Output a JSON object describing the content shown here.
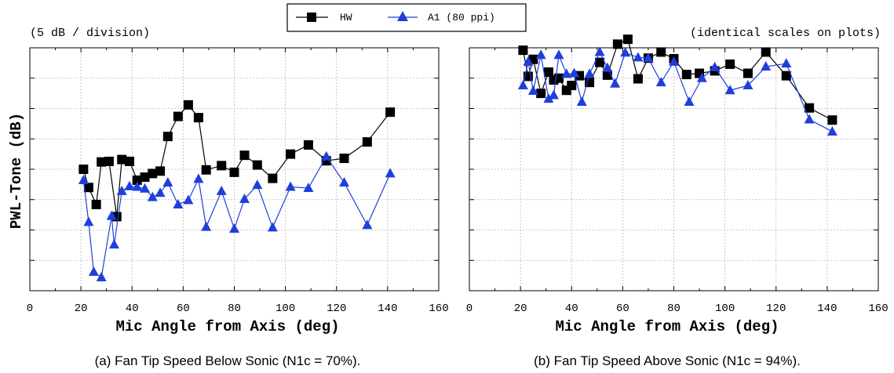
{
  "header": {
    "scale_note": "(5 dB / division)",
    "scale_note_right": "(identical scales on plots)"
  },
  "legend": {
    "position": "top-center",
    "entries": [
      {
        "label": "HW",
        "color": "#000000",
        "marker": "square"
      },
      {
        "label": "A1 (80 ppi)",
        "color": "#1f3fdc",
        "marker": "triangle"
      }
    ]
  },
  "chart_data": [
    {
      "type": "line",
      "title": "",
      "caption": "(a) Fan Tip Speed Below Sonic (N1c = 70%).",
      "xlabel": "Mic Angle from Axis (deg)",
      "ylabel": "PWL-Tone (dB)",
      "xlim": [
        0,
        160
      ],
      "xticks": [
        0,
        20,
        40,
        60,
        80,
        100,
        120,
        140,
        160
      ],
      "ylim": [
        0,
        40
      ],
      "y_tick_labels_shown": false,
      "grid": true,
      "series": [
        {
          "name": "HW",
          "color": "#000000",
          "marker": "square",
          "points": [
            [
              21,
              20
            ],
            [
              23,
              17
            ],
            [
              26,
              14.2
            ],
            [
              28,
              21.2
            ],
            [
              31,
              21.3
            ],
            [
              34,
              12.2
            ],
            [
              36,
              21.6
            ],
            [
              39,
              21.3
            ],
            [
              42,
              18.2
            ],
            [
              45,
              18.7
            ],
            [
              48,
              19.3
            ],
            [
              51,
              19.7
            ],
            [
              54,
              25.4
            ],
            [
              58,
              28.7
            ],
            [
              62,
              30.6
            ],
            [
              66,
              28.5
            ],
            [
              69,
              19.9
            ],
            [
              75,
              20.6
            ],
            [
              80,
              19.5
            ],
            [
              84,
              22.3
            ],
            [
              89,
              20.7
            ],
            [
              95,
              18.5
            ],
            [
              102,
              22.5
            ],
            [
              109,
              24
            ],
            [
              116,
              21.4
            ],
            [
              123,
              21.8
            ],
            [
              132,
              24.5
            ],
            [
              141,
              29.4
            ]
          ]
        },
        {
          "name": "A1 (80 ppi)",
          "color": "#1f3fdc",
          "marker": "triangle",
          "points": [
            [
              21,
              18.2
            ],
            [
              23,
              11.3
            ],
            [
              25,
              3.1
            ],
            [
              28,
              2.2
            ],
            [
              32,
              12.3
            ],
            [
              33,
              7.6
            ],
            [
              36,
              16.4
            ],
            [
              39,
              17.2
            ],
            [
              42,
              17.1
            ],
            [
              45,
              16.8
            ],
            [
              48,
              15.4
            ],
            [
              51,
              16.1
            ],
            [
              54,
              17.8
            ],
            [
              58,
              14.2
            ],
            [
              62,
              14.9
            ],
            [
              66,
              18.4
            ],
            [
              69,
              10.5
            ],
            [
              75,
              16.4
            ],
            [
              80,
              10.2
            ],
            [
              84,
              15.1
            ],
            [
              89,
              17.4
            ],
            [
              95,
              10.4
            ],
            [
              102,
              17.1
            ],
            [
              109,
              16.9
            ],
            [
              116,
              22.1
            ],
            [
              123,
              17.8
            ],
            [
              132,
              10.8
            ],
            [
              141,
              19.3
            ]
          ]
        }
      ]
    },
    {
      "type": "line",
      "title": "",
      "caption": "(b) Fan Tip Speed Above Sonic (N1c = 94%).",
      "xlabel": "Mic Angle from Axis (deg)",
      "ylabel": "",
      "xlim": [
        0,
        160
      ],
      "xticks": [
        0,
        20,
        40,
        60,
        80,
        100,
        120,
        140,
        160
      ],
      "ylim": [
        0,
        40
      ],
      "y_tick_labels_shown": false,
      "grid": true,
      "series": [
        {
          "name": "HW",
          "color": "#000000",
          "marker": "square",
          "points": [
            [
              21,
              39.6
            ],
            [
              23,
              35.3
            ],
            [
              25,
              38.1
            ],
            [
              28,
              32.5
            ],
            [
              31,
              36.0
            ],
            [
              33,
              34.7
            ],
            [
              35,
              35.0
            ],
            [
              38,
              33.0
            ],
            [
              40,
              33.8
            ],
            [
              43,
              35.4
            ],
            [
              47,
              34.3
            ],
            [
              51,
              37.6
            ],
            [
              54,
              35.5
            ],
            [
              58,
              40.6
            ],
            [
              62,
              41.4
            ],
            [
              66,
              34.9
            ],
            [
              70,
              38.3
            ],
            [
              75,
              39.3
            ],
            [
              80,
              38.2
            ],
            [
              85,
              35.6
            ],
            [
              90,
              35.8
            ],
            [
              96,
              36.2
            ],
            [
              102,
              37.3
            ],
            [
              109,
              35.8
            ],
            [
              116,
              39.3
            ],
            [
              124,
              35.4
            ],
            [
              133,
              30.1
            ],
            [
              142,
              28.1
            ]
          ]
        },
        {
          "name": "A1 (80 ppi)",
          "color": "#1f3fdc",
          "marker": "triangle",
          "points": [
            [
              21,
              33.8
            ],
            [
              23,
              37.7
            ],
            [
              25,
              32.9
            ],
            [
              28,
              38.8
            ],
            [
              31,
              31.6
            ],
            [
              33,
              32.2
            ],
            [
              35,
              38.8
            ],
            [
              38,
              35.7
            ],
            [
              41,
              35.8
            ],
            [
              44,
              31.1
            ],
            [
              47,
              35.7
            ],
            [
              51,
              39.3
            ],
            [
              54,
              36.7
            ],
            [
              57,
              34.1
            ],
            [
              61,
              39.2
            ],
            [
              66,
              38.4
            ],
            [
              70,
              38.3
            ],
            [
              75,
              34.3
            ],
            [
              80,
              37.7
            ],
            [
              86,
              31.1
            ],
            [
              91,
              35.0
            ],
            [
              96,
              36.8
            ],
            [
              102,
              33.0
            ],
            [
              109,
              33.8
            ],
            [
              116,
              36.9
            ],
            [
              124,
              37.4
            ],
            [
              133,
              28.2
            ],
            [
              142,
              26.2
            ]
          ]
        }
      ]
    }
  ]
}
